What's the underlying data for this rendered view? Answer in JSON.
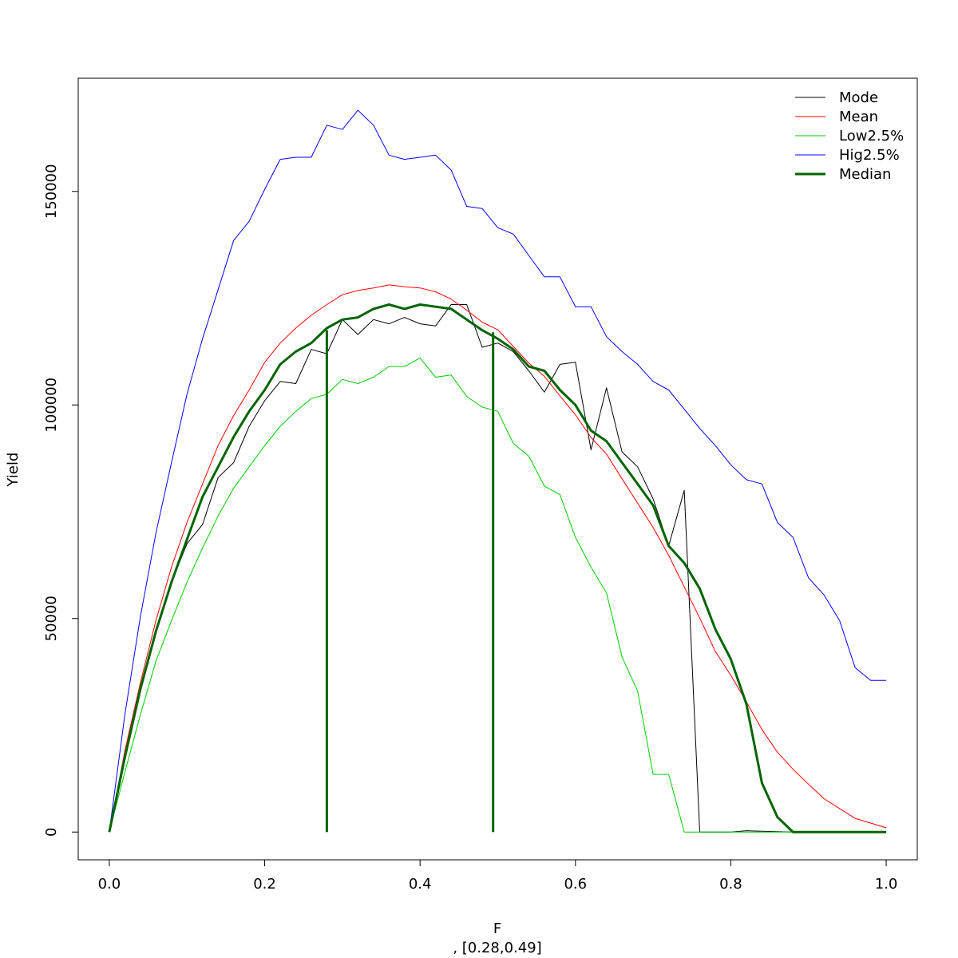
{
  "chart_data": {
    "type": "line",
    "xlabel": "F",
    "sublabel": ", [0.28,0.49]",
    "ylabel": "Yield",
    "xlim": [
      -0.04,
      1.04
    ],
    "ylim": [
      -6500,
      176500
    ],
    "x_ticks": [
      0.0,
      0.2,
      0.4,
      0.6,
      0.8,
      1.0
    ],
    "x_tick_labels": [
      "0.0",
      "0.2",
      "0.4",
      "0.6",
      "0.8",
      "1.0"
    ],
    "y_ticks": [
      0,
      50000,
      100000,
      150000
    ],
    "y_tick_labels": [
      "0",
      "50000",
      "100000",
      "150000"
    ],
    "legend_position": "top-right",
    "x": [
      0.0,
      0.02,
      0.04,
      0.06,
      0.08,
      0.1,
      0.12,
      0.14,
      0.16,
      0.18,
      0.2,
      0.22,
      0.24,
      0.26,
      0.28,
      0.3,
      0.32,
      0.34,
      0.36,
      0.38,
      0.4,
      0.42,
      0.44,
      0.46,
      0.48,
      0.5,
      0.52,
      0.54,
      0.56,
      0.58,
      0.6,
      0.62,
      0.64,
      0.66,
      0.68,
      0.7,
      0.72,
      0.74,
      0.76,
      0.78,
      0.8,
      0.82,
      0.84,
      0.86,
      0.88,
      0.9,
      0.92,
      0.94,
      0.96,
      0.98,
      1.0
    ],
    "series": [
      {
        "name": "Mode",
        "color": "#000000",
        "width": 1,
        "values": [
          0,
          17500,
          34000,
          47000,
          58500,
          67500,
          72000,
          83000,
          86500,
          95000,
          101000,
          105500,
          105000,
          113000,
          112000,
          120000,
          116500,
          120000,
          119000,
          120500,
          119000,
          118500,
          123500,
          123500,
          113500,
          114500,
          112500,
          108000,
          103000,
          109500,
          110000,
          89500,
          104000,
          89000,
          85500,
          78000,
          67000,
          80000,
          0,
          0,
          0,
          300,
          200,
          100,
          0,
          0,
          0,
          0,
          0,
          0,
          0
        ]
      },
      {
        "name": "Mean",
        "color": "#ff0000",
        "width": 1,
        "values": [
          0,
          19000,
          35000,
          49500,
          62000,
          72500,
          81500,
          90500,
          97500,
          103500,
          110000,
          114500,
          118000,
          121000,
          123500,
          125800,
          126800,
          127400,
          128100,
          127700,
          127400,
          126500,
          124800,
          122200,
          119400,
          117600,
          113700,
          109800,
          106700,
          102100,
          97700,
          92400,
          88500,
          82700,
          77000,
          71300,
          64800,
          57400,
          50100,
          42300,
          36700,
          30500,
          24000,
          18700,
          14700,
          11200,
          7800,
          5500,
          3200,
          2100,
          1000
        ]
      },
      {
        "name": "Low2.5%",
        "color": "#00cc00",
        "width": 1,
        "values": [
          0,
          14000,
          27500,
          40000,
          49500,
          58500,
          66500,
          74000,
          80500,
          85500,
          90500,
          95000,
          98500,
          101500,
          102500,
          106000,
          105000,
          106500,
          109000,
          109000,
          111000,
          106500,
          107000,
          102000,
          99500,
          98500,
          91000,
          88000,
          81000,
          79000,
          69000,
          62000,
          56000,
          41000,
          33000,
          13500,
          13500,
          0,
          0,
          0,
          0,
          0,
          0,
          0,
          0,
          0,
          0,
          0,
          0,
          0,
          0
        ]
      },
      {
        "name": "Hig2.5%",
        "color": "#0000ff",
        "width": 1,
        "values": [
          0,
          27500,
          50500,
          70000,
          86500,
          102500,
          115500,
          127000,
          138500,
          143000,
          150500,
          157500,
          158000,
          158000,
          165500,
          164500,
          169000,
          165500,
          158500,
          157500,
          158000,
          158500,
          155000,
          146500,
          146000,
          141500,
          140000,
          135000,
          130000,
          130000,
          123000,
          123000,
          116000,
          112500,
          109500,
          105500,
          103500,
          99000,
          94500,
          90500,
          86000,
          82500,
          81500,
          72500,
          69000,
          59500,
          55500,
          49500,
          38500,
          35500,
          35500
        ]
      },
      {
        "name": "Median",
        "color": "#006400",
        "width": 3,
        "values": [
          0,
          17500,
          33500,
          47000,
          58500,
          68500,
          78500,
          85500,
          92500,
          98500,
          103500,
          109500,
          112500,
          114500,
          118000,
          120000,
          120500,
          122500,
          123500,
          122500,
          123500,
          123000,
          122500,
          120000,
          117500,
          115500,
          113000,
          109000,
          108000,
          103500,
          100000,
          94000,
          91500,
          86500,
          81500,
          76500,
          67000,
          63000,
          57000,
          47500,
          40500,
          30000,
          11500,
          3500,
          0,
          0,
          0,
          0,
          0,
          0,
          0
        ]
      }
    ],
    "vertical_markers": {
      "color": "#006400",
      "x": [
        0.28,
        0.494
      ],
      "y_top": [
        117500,
        117000
      ]
    }
  }
}
